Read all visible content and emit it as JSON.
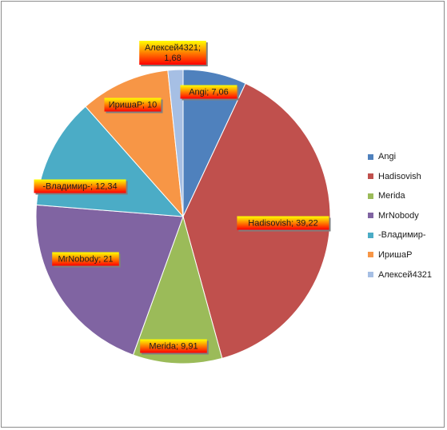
{
  "chart_data": {
    "type": "pie",
    "title": "",
    "categories": [
      "Angi",
      "Hadisovish",
      "Merida",
      "MrNobody",
      "-Владимир-",
      "ИришаР",
      "Алексей4321"
    ],
    "values": [
      7.06,
      39.22,
      9.91,
      21,
      12.34,
      10,
      1.68
    ],
    "data_labels": [
      "Angi; 7,06",
      "Hadisovish; 39,22",
      "Merida; 9,91",
      "MrNobody; 21",
      "-Владимир-; 12,34",
      "ИришаР; 10",
      "Алексей4321; 1,68"
    ],
    "colors": [
      "#4f81bd",
      "#c0504d",
      "#9bbb59",
      "#8064a2",
      "#4bacc6",
      "#f79646",
      "#a6bfe4"
    ],
    "label_fill": {
      "top": "#ffff00",
      "bottom": "#ff0000"
    },
    "legend_position": "right"
  }
}
